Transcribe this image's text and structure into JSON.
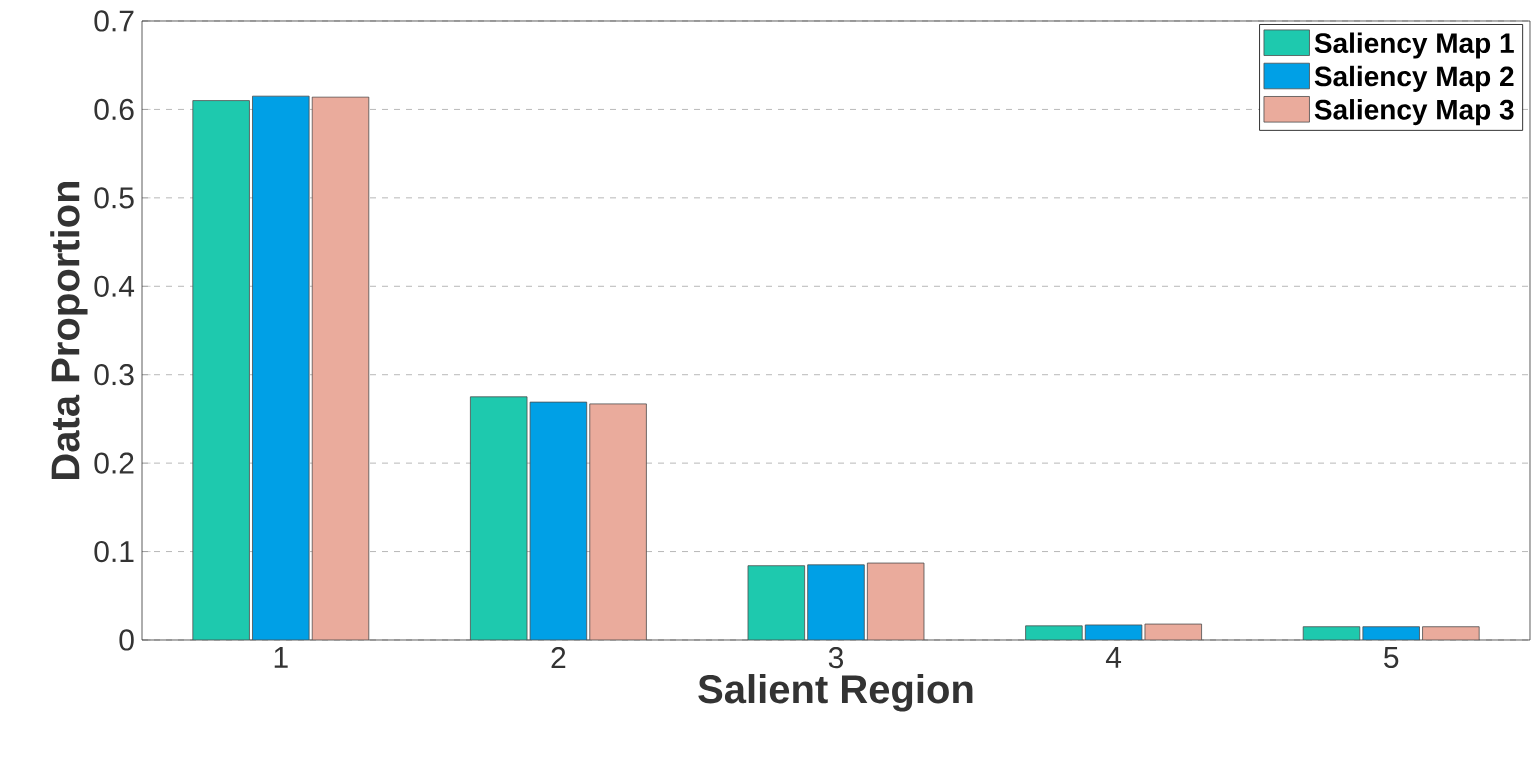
{
  "chart_data": {
    "type": "bar",
    "xlabel": "Salient Region",
    "ylabel": "Data Proportion",
    "categories": [
      "1",
      "2",
      "3",
      "4",
      "5"
    ],
    "series": [
      {
        "name": "Saliency Map 1",
        "color": "#1ec9ae",
        "values": [
          0.61,
          0.275,
          0.084,
          0.016,
          0.015
        ]
      },
      {
        "name": "Saliency Map 2",
        "color": "#00a0e6",
        "values": [
          0.615,
          0.269,
          0.085,
          0.017,
          0.015
        ]
      },
      {
        "name": "Saliency Map 3",
        "color": "#eaab9c",
        "values": [
          0.614,
          0.267,
          0.087,
          0.018,
          0.015
        ]
      }
    ],
    "ylim": [
      0,
      0.7
    ],
    "yticks": [
      0,
      0.1,
      0.2,
      0.3,
      0.4,
      0.5,
      0.6,
      0.7
    ],
    "grid": "y",
    "legend": "top right"
  }
}
